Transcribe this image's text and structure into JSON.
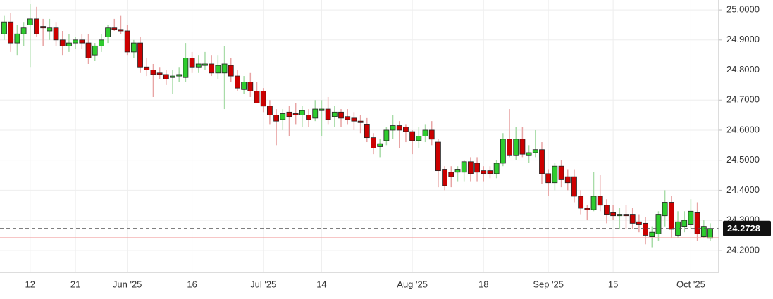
{
  "chart_data": {
    "type": "candlestick",
    "categories": [
      null,
      null,
      null,
      null,
      "12",
      null,
      null,
      null,
      null,
      null,
      null,
      "21",
      null,
      null,
      null,
      null,
      null,
      null,
      null,
      "Jun '25",
      null,
      null,
      null,
      null,
      null,
      null,
      null,
      null,
      null,
      "16",
      null,
      null,
      null,
      null,
      null,
      null,
      null,
      null,
      null,
      null,
      "Jul '25",
      null,
      null,
      null,
      null,
      null,
      null,
      null,
      null,
      "14",
      null,
      null,
      null,
      null,
      null,
      null,
      null,
      null,
      null,
      null,
      null,
      null,
      null,
      "Aug '25",
      null,
      null,
      null,
      null,
      null,
      null,
      null,
      null,
      null,
      null,
      "18",
      null,
      null,
      null,
      null,
      null,
      null,
      null,
      null,
      null,
      "Sep '25",
      null,
      null,
      null,
      null,
      null,
      null,
      null,
      null,
      null,
      "15",
      null,
      null,
      null,
      null,
      null,
      null,
      null,
      null,
      null,
      null,
      null,
      "Oct '25",
      null,
      null,
      null
    ],
    "open": [
      24.92,
      24.96,
      24.89,
      24.92,
      24.95,
      24.97,
      24.945,
      24.93,
      24.94,
      24.9,
      24.88,
      24.89,
      24.9,
      24.89,
      24.85,
      24.88,
      24.91,
      24.94,
      24.935,
      24.93,
      24.86,
      24.89,
      24.81,
      24.8,
      24.79,
      24.785,
      24.775,
      24.78,
      24.775,
      24.84,
      24.81,
      24.815,
      24.82,
      24.79,
      24.79,
      24.815,
      24.78,
      24.735,
      24.76,
      24.73,
      24.73,
      24.68,
      24.65,
      24.635,
      24.66,
      24.655,
      24.65,
      24.65,
      24.64,
      24.665,
      24.67,
      24.645,
      24.66,
      24.645,
      24.64,
      24.63,
      24.62,
      24.575,
      24.545,
      24.565,
      24.6,
      24.615,
      24.61,
      24.595,
      24.565,
      24.58,
      24.6,
      24.56,
      24.47,
      24.46,
      24.46,
      24.46,
      24.495,
      24.49,
      24.465,
      24.465,
      24.455,
      24.49,
      24.57,
      24.515,
      24.57,
      24.515,
      24.525,
      24.535,
      24.455,
      24.425,
      24.48,
      24.445,
      24.445,
      24.38,
      24.34,
      24.335,
      24.38,
      24.35,
      24.325,
      24.315,
      24.32,
      24.32,
      24.295,
      24.29,
      24.245,
      24.255,
      24.315,
      24.36,
      24.25,
      24.28,
      24.285,
      24.325,
      24.245,
      24.24
    ],
    "high": [
      24.98,
      24.99,
      24.95,
      24.96,
      25.02,
      25.01,
      24.97,
      24.97,
      24.96,
      24.93,
      24.92,
      24.91,
      24.92,
      24.92,
      24.89,
      24.92,
      24.95,
      24.97,
      24.98,
      24.95,
      24.9,
      24.91,
      24.84,
      24.82,
      24.81,
      24.8,
      24.8,
      24.81,
      24.89,
      24.86,
      24.85,
      24.86,
      24.85,
      24.85,
      24.88,
      24.84,
      24.8,
      24.78,
      24.79,
      24.76,
      24.74,
      24.7,
      24.67,
      24.67,
      24.68,
      24.69,
      24.68,
      24.67,
      24.7,
      24.7,
      24.71,
      24.68,
      24.67,
      24.67,
      24.66,
      24.65,
      24.64,
      24.59,
      24.57,
      24.61,
      24.65,
      24.63,
      24.62,
      24.6,
      24.61,
      24.62,
      24.63,
      24.57,
      24.48,
      24.48,
      24.48,
      24.5,
      24.51,
      24.51,
      24.48,
      24.48,
      24.5,
      24.59,
      24.67,
      24.61,
      24.61,
      24.55,
      24.6,
      24.56,
      24.47,
      24.49,
      24.5,
      24.47,
      24.47,
      24.4,
      24.35,
      24.46,
      24.45,
      24.37,
      24.35,
      24.34,
      24.35,
      24.34,
      24.32,
      24.31,
      24.28,
      24.33,
      24.4,
      24.38,
      24.33,
      24.33,
      24.37,
      24.36,
      24.3,
      24.29
    ],
    "low": [
      24.9,
      24.86,
      24.85,
      24.88,
      24.81,
      24.91,
      24.88,
      24.9,
      24.88,
      24.85,
      24.86,
      24.87,
      24.87,
      24.82,
      24.83,
      24.86,
      24.89,
      24.93,
      24.92,
      24.85,
      24.84,
      24.79,
      24.78,
      24.71,
      24.77,
      24.75,
      24.72,
      24.76,
      24.76,
      24.79,
      24.79,
      24.8,
      24.78,
      24.77,
      24.67,
      24.76,
      24.73,
      24.72,
      24.71,
      24.69,
      24.66,
      24.62,
      24.55,
      24.6,
      24.58,
      24.62,
      24.61,
      24.61,
      24.63,
      24.58,
      24.62,
      24.61,
      24.61,
      24.62,
      24.6,
      24.59,
      24.56,
      24.52,
      24.51,
      24.55,
      24.57,
      24.54,
      24.56,
      24.52,
      24.54,
      24.56,
      24.55,
      24.41,
      24.4,
      24.41,
      24.43,
      24.43,
      24.43,
      24.43,
      24.43,
      24.44,
      24.44,
      24.48,
      24.51,
      24.5,
      24.51,
      24.49,
      24.51,
      24.42,
      24.38,
      24.4,
      24.41,
      24.4,
      24.36,
      24.32,
      24.3,
      24.33,
      24.33,
      24.29,
      24.3,
      24.27,
      24.27,
      24.27,
      24.26,
      24.22,
      24.21,
      24.23,
      24.28,
      24.24,
      24.24,
      24.26,
      24.27,
      24.23,
      24.24,
      24.23
    ],
    "close": [
      24.96,
      24.89,
      24.92,
      24.94,
      24.97,
      24.92,
      24.94,
      24.94,
      24.9,
      24.88,
      24.89,
      24.9,
      24.89,
      24.84,
      24.88,
      24.9,
      24.94,
      24.935,
      24.93,
      24.86,
      24.89,
      24.81,
      24.8,
      24.785,
      24.785,
      24.77,
      24.78,
      24.785,
      24.84,
      24.81,
      24.82,
      24.82,
      24.79,
      24.815,
      24.82,
      24.78,
      24.74,
      24.76,
      24.73,
      24.69,
      24.68,
      24.65,
      24.63,
      24.655,
      24.645,
      24.65,
      24.665,
      24.635,
      24.67,
      24.67,
      24.635,
      24.66,
      24.64,
      24.635,
      24.63,
      24.625,
      24.575,
      24.54,
      24.555,
      24.6,
      24.615,
      24.6,
      24.595,
      24.565,
      24.58,
      24.6,
      24.57,
      24.465,
      24.415,
      24.445,
      24.47,
      24.495,
      24.455,
      24.46,
      24.455,
      24.455,
      24.49,
      24.57,
      24.515,
      24.57,
      24.52,
      24.525,
      24.535,
      24.455,
      24.425,
      24.48,
      24.435,
      24.425,
      24.38,
      24.34,
      24.335,
      24.38,
      24.35,
      24.32,
      24.315,
      24.32,
      24.315,
      24.29,
      24.285,
      24.25,
      24.26,
      24.32,
      24.36,
      24.27,
      24.295,
      24.3,
      24.33,
      24.255,
      24.28,
      24.2728
    ],
    "up_color": "#2ecc2e",
    "down_color": "#cc0000",
    "up_wick_color": "#a8dca8",
    "down_wick_color": "#e8a4a4",
    "ylim": [
      24.127,
      25.033
    ],
    "yticks": [
      {
        "value": 24.2,
        "label": "24.2000"
      },
      {
        "value": 24.3,
        "label": "24.3000"
      },
      {
        "value": 24.4,
        "label": "24.4000"
      },
      {
        "value": 24.5,
        "label": "24.5000"
      },
      {
        "value": 24.6,
        "label": "24.6000"
      },
      {
        "value": 24.7,
        "label": "24.7000"
      },
      {
        "value": 24.8,
        "label": "24.8000"
      },
      {
        "value": 24.9,
        "label": "24.9000"
      },
      {
        "value": 25.0,
        "label": "25.0000"
      }
    ],
    "last_price": 24.2728,
    "reference_line": 24.242,
    "grid": true
  }
}
